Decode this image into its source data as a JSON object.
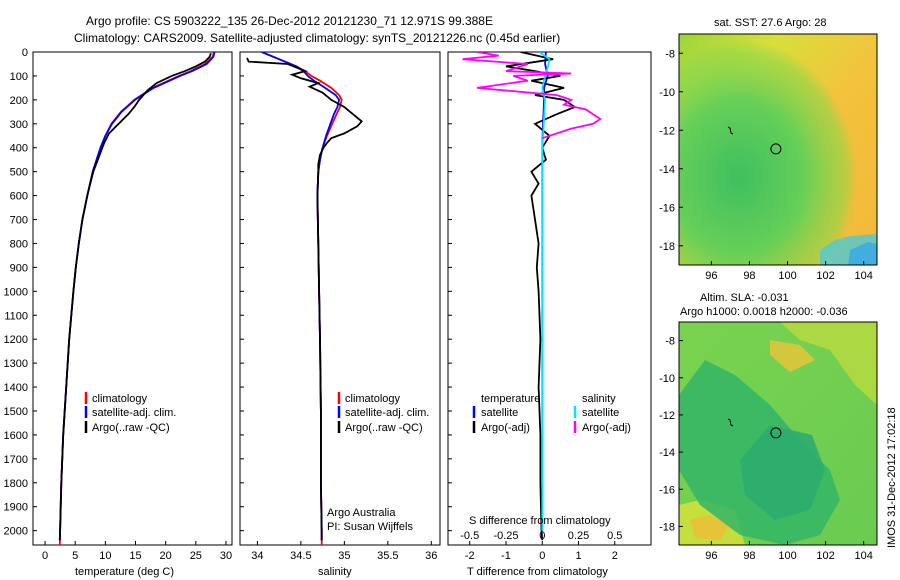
{
  "header": {
    "line1": "Argo profile: CS 5903222_135 26-Dec-2012 20121230_71 12.971S 99.388E",
    "line2": "Climatology: CARS2009. Satellite-adjusted climatology: synTS_20121226.nc (0.45d earlier)"
  },
  "colors": {
    "climatology": "#ff0000",
    "satellite": "#0000ff",
    "argo": "#000000",
    "salinity_sat": "#00e5ff",
    "salinity_argo": "#ff00ff"
  },
  "chart_data": [
    {
      "type": "line",
      "id": "temperature",
      "xlabel": "temperature (deg C)",
      "xlim": [
        -2,
        31
      ],
      "xticks": [
        "0",
        "5",
        "10",
        "15",
        "20",
        "25",
        "30"
      ],
      "ylim": [
        0,
        2060
      ],
      "yticks": [
        "0",
        "100",
        "200",
        "300",
        "400",
        "500",
        "600",
        "700",
        "800",
        "900",
        "1000",
        "1100",
        "1200",
        "1300",
        "1400",
        "1500",
        "1600",
        "1700",
        "1800",
        "1900",
        "2000"
      ],
      "legend": [
        "climatology",
        "satellite-adj. clim.",
        "Argo(..raw -QC)"
      ],
      "series": [
        {
          "name": "climatology",
          "depth": [
            0,
            20,
            50,
            80,
            100,
            150,
            200,
            250,
            300,
            350,
            400,
            500,
            600,
            700,
            800,
            900,
            1000,
            1200,
            1400,
            1600,
            1800,
            2000,
            2060
          ],
          "values": [
            28.0,
            27.8,
            26.5,
            24.2,
            22.2,
            17.8,
            14.8,
            12.6,
            11.0,
            10.0,
            9.2,
            7.9,
            7.0,
            6.2,
            5.6,
            5.1,
            4.7,
            4.0,
            3.5,
            3.0,
            2.7,
            2.5,
            2.45
          ]
        },
        {
          "name": "satellite-adj. clim.",
          "depth": [
            0,
            20,
            50,
            80,
            100,
            150,
            200,
            250,
            300,
            350,
            400,
            500,
            600,
            700,
            800,
            900,
            1000,
            1200,
            1400,
            1600,
            1800,
            2000,
            2040
          ],
          "values": [
            28.1,
            27.9,
            26.8,
            24.4,
            22.4,
            18.0,
            14.9,
            12.7,
            11.1,
            10.0,
            9.2,
            7.9,
            7.0,
            6.2,
            5.6,
            5.1,
            4.7,
            4.0,
            3.5,
            3.0,
            2.7,
            2.5,
            2.45
          ]
        },
        {
          "name": "Argo(..raw -QC)",
          "depth": [
            5,
            20,
            40,
            60,
            80,
            100,
            130,
            160,
            200,
            230,
            260,
            300,
            340,
            380,
            420,
            500,
            600,
            700,
            800,
            900,
            1000,
            1200,
            1400,
            1600,
            1800,
            2000,
            2040
          ],
          "values": [
            27.5,
            27.3,
            26.5,
            25.0,
            23.2,
            21.0,
            18.5,
            17.0,
            15.6,
            14.8,
            13.8,
            12.2,
            10.6,
            9.8,
            9.2,
            8.0,
            7.0,
            6.2,
            5.6,
            5.1,
            4.7,
            4.0,
            3.5,
            3.0,
            2.7,
            2.5,
            2.45
          ]
        }
      ]
    },
    {
      "type": "line",
      "id": "salinity",
      "xlabel": "salinity",
      "xlim": [
        33.8,
        36.1
      ],
      "xticks": [
        "34",
        "34.5",
        "35",
        "35.5",
        "36"
      ],
      "ylim": [
        0,
        2060
      ],
      "legend": [
        "climatology",
        "satellite-adj. clim.",
        "Argo(..raw -QC)"
      ],
      "annotation": [
        "Argo Australia",
        "PI: Susan Wijffels"
      ],
      "series": [
        {
          "name": "climatology",
          "depth": [
            0,
            30,
            60,
            80,
            100,
            120,
            150,
            180,
            200,
            230,
            260,
            300,
            350,
            400,
            450,
            500,
            600,
            800,
            1000,
            1200,
            1500,
            1800,
            2000,
            2060
          ],
          "values": [
            34.05,
            34.25,
            34.45,
            34.55,
            34.62,
            34.72,
            34.85,
            34.94,
            34.97,
            34.95,
            34.91,
            34.86,
            34.8,
            34.75,
            34.72,
            34.7,
            34.69,
            34.7,
            34.71,
            34.72,
            34.73,
            34.73,
            34.74,
            34.74
          ]
        },
        {
          "name": "satellite-adj. clim.",
          "depth": [
            0,
            30,
            60,
            80,
            100,
            120,
            150,
            180,
            200,
            230,
            260,
            300,
            350,
            400,
            450,
            500,
            600,
            800,
            1000,
            1200,
            1500,
            1800,
            2000,
            2040
          ],
          "values": [
            34.05,
            34.25,
            34.45,
            34.53,
            34.58,
            34.65,
            34.78,
            34.9,
            34.94,
            34.92,
            34.88,
            34.84,
            34.79,
            34.75,
            34.72,
            34.7,
            34.69,
            34.7,
            34.71,
            34.72,
            34.73,
            34.73,
            34.74,
            34.74
          ]
        },
        {
          "name": "Argo(..raw -QC)",
          "depth": [
            25,
            40,
            50,
            65,
            80,
            95,
            110,
            130,
            145,
            170,
            200,
            230,
            260,
            290,
            310,
            340,
            360,
            380,
            400,
            430,
            470,
            500,
            600,
            800,
            1000,
            1200,
            1500,
            1800,
            2000,
            2040
          ],
          "values": [
            33.88,
            33.9,
            34.35,
            34.45,
            34.55,
            34.4,
            34.5,
            34.7,
            34.6,
            34.75,
            34.85,
            35.0,
            35.1,
            35.2,
            35.15,
            35.0,
            34.85,
            34.8,
            34.76,
            34.72,
            34.7,
            34.7,
            34.69,
            34.7,
            34.71,
            34.72,
            34.73,
            34.73,
            34.74,
            34.74
          ]
        }
      ]
    },
    {
      "type": "line",
      "id": "difference",
      "xlabel": "T difference from climatology",
      "xlabel_top": "S difference from climatology",
      "xlim": [
        -2.6,
        3.0
      ],
      "xticks": [
        "-2",
        "-1",
        "0",
        "1",
        "2"
      ],
      "xticks_top": [
        "-0.5",
        "-0.25",
        "0",
        "0.25",
        "0.5"
      ],
      "legend_temperature": {
        "heading": "temperature",
        "items": [
          "satellite",
          "Argo(-adj)"
        ]
      },
      "legend_salinity": {
        "heading": "salinity",
        "items": [
          "satellite",
          "Argo(-adj)"
        ]
      },
      "series": [
        {
          "name": "temperature satellite",
          "depth": [
            0,
            50,
            100,
            150,
            200,
            300,
            400,
            600,
            1000,
            2000
          ],
          "values": [
            0.1,
            0.08,
            0.15,
            0.05,
            0.05,
            0.02,
            0.0,
            0.0,
            0.0,
            0.0
          ]
        },
        {
          "name": "temperature Argo(-adj)",
          "depth": [
            0,
            30,
            60,
            80,
            100,
            120,
            150,
            180,
            200,
            230,
            260,
            300,
            350,
            400,
            450,
            500,
            550,
            600,
            700,
            800,
            900,
            1000,
            1200,
            1400,
            1600,
            1800,
            2000,
            2040
          ],
          "values": [
            -0.6,
            0.3,
            -1.0,
            -0.2,
            0.5,
            -0.3,
            0.6,
            -0.2,
            0.6,
            0.9,
            0.4,
            -0.2,
            0.2,
            0.0,
            0.1,
            -0.3,
            -0.1,
            -0.3,
            -0.2,
            -0.1,
            -0.15,
            -0.1,
            -0.05,
            -0.1,
            -0.05,
            -0.05,
            -0.02,
            0.0
          ]
        },
        {
          "name": "salinity satellite",
          "depth": [
            0,
            30,
            60,
            100,
            150,
            200,
            300,
            400,
            600,
            1000,
            2000
          ],
          "values": [
            -0.02,
            0.05,
            0.04,
            0.02,
            0.0,
            0.02,
            0.01,
            0.0,
            0.0,
            0.0,
            0.0
          ]
        },
        {
          "name": "salinity Argo(-adj)",
          "depth": [
            0,
            15,
            30,
            50,
            70,
            80,
            90,
            100,
            120,
            150,
            180,
            200,
            220,
            240,
            260,
            280,
            300,
            320,
            340,
            360
          ],
          "values": [
            -0.45,
            -0.3,
            -0.55,
            -0.1,
            -0.2,
            -0.25,
            0.2,
            -0.2,
            -0.1,
            -0.45,
            0.1,
            0.2,
            0.15,
            0.3,
            0.35,
            0.4,
            0.35,
            0.2,
            0.1,
            0.0
          ]
        }
      ]
    },
    {
      "type": "heatmap",
      "id": "sst_map",
      "title": "sat. SST: 27.6 Argo: 28",
      "xticks": [
        "96",
        "98",
        "100",
        "102",
        "104"
      ],
      "yticks": [
        "-8",
        "-10",
        "-12",
        "-14",
        "-16",
        "-18"
      ],
      "marker": {
        "lon": 99.39,
        "lat": -12.97
      }
    },
    {
      "type": "heatmap",
      "id": "sla_map",
      "title": "Altim. SLA: -0.031",
      "subtitle": "Argo h1000: 0.0018 h2000: -0.036",
      "xticks": [
        "96",
        "98",
        "100",
        "102",
        "104"
      ],
      "yticks": [
        "-8",
        "-10",
        "-12",
        "-14",
        "-16",
        "-18"
      ],
      "marker": {
        "lon": 99.39,
        "lat": -12.97
      }
    }
  ],
  "side_label": "IMOS 31-Dec-2012 17:02:18"
}
